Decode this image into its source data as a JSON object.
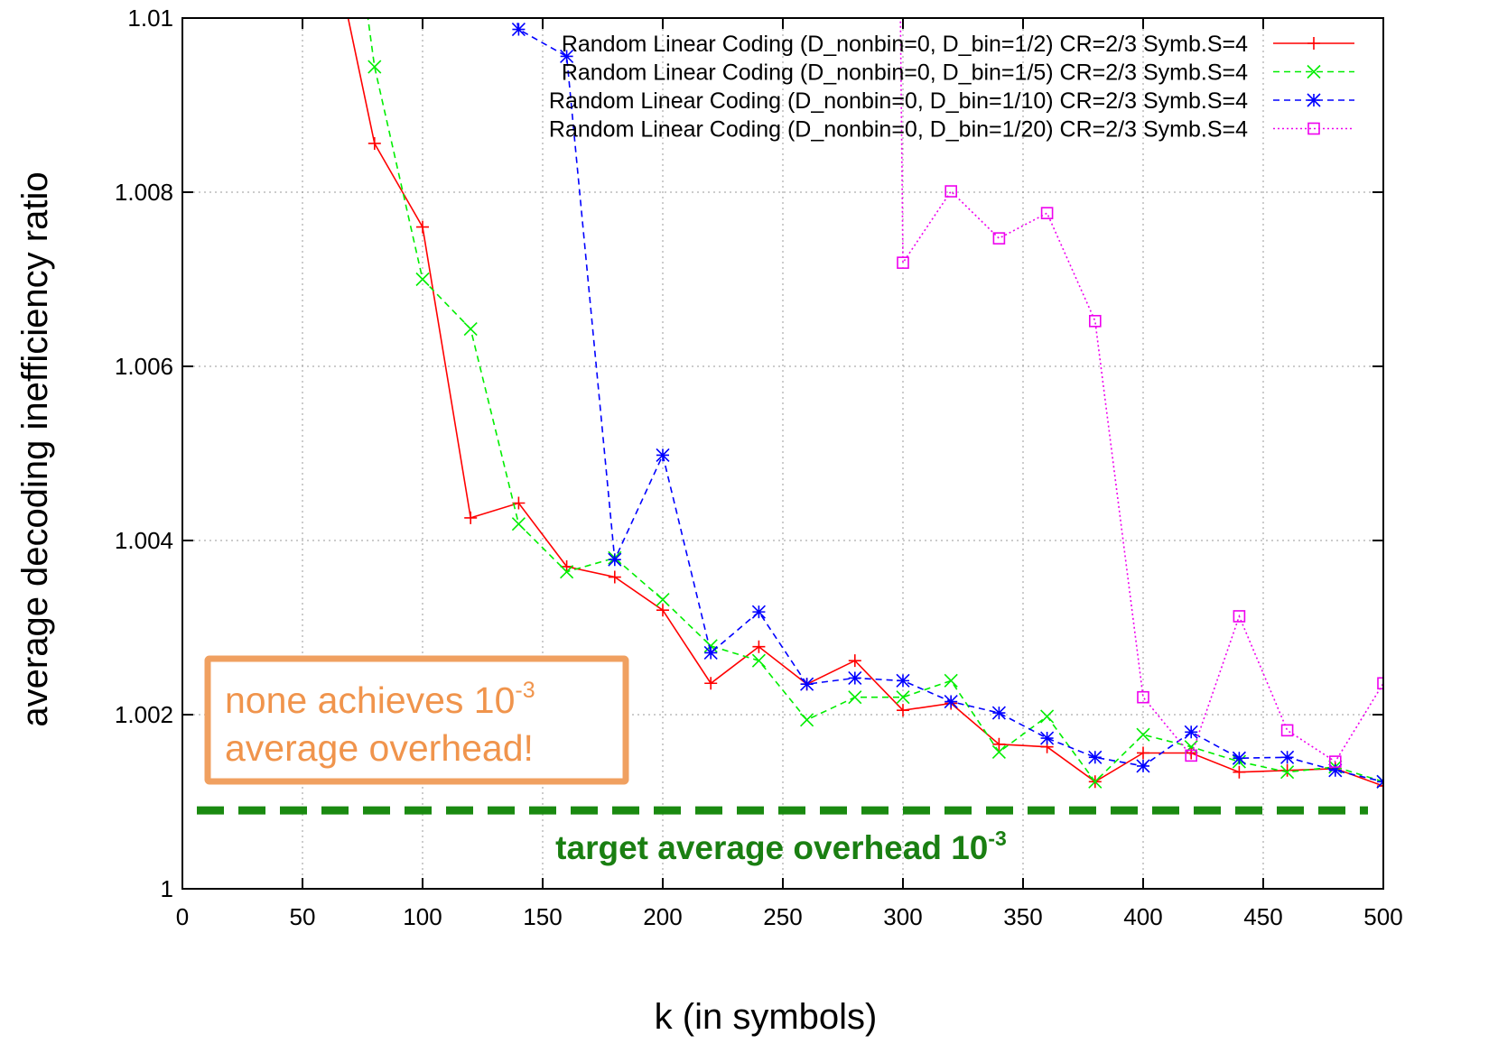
{
  "chart_data": {
    "type": "line",
    "title": "",
    "xlabel": "k (in symbols)",
    "ylabel": "average decoding inefficiency ratio",
    "xlim": [
      0,
      500
    ],
    "ylim": [
      1,
      1.01
    ],
    "xticks": [
      "0",
      "50",
      "100",
      "150",
      "200",
      "250",
      "300",
      "350",
      "400",
      "450",
      "500"
    ],
    "yticks": [
      "1",
      "1.002",
      "1.004",
      "1.006",
      "1.008",
      "1.01"
    ],
    "grid": true,
    "legend_position": "top-right",
    "series": [
      {
        "name": "Random Linear Coding (D_nonbin=0, D_bin=1/2) CR=2/3 Symb.S=4",
        "color": "#ff0000",
        "marker": "plus",
        "line_style": "solid",
        "x": [
          40,
          80,
          100,
          120,
          140,
          160,
          180,
          200,
          220,
          240,
          260,
          280,
          300,
          320,
          340,
          360,
          380,
          400,
          420,
          440,
          460,
          480,
          500
        ],
        "y": [
          1.0138,
          1.00856,
          1.0076,
          1.00426,
          1.00443,
          1.0037,
          1.00358,
          1.0032,
          1.00236,
          1.00278,
          1.00235,
          1.00262,
          1.00205,
          1.00213,
          1.00166,
          1.00163,
          1.00123,
          1.00156,
          1.00156,
          1.00134,
          1.00136,
          1.00138,
          1.00118
        ]
      },
      {
        "name": "Random Linear Coding (D_nonbin=0, D_bin=1/5) CR=2/3 Symb.S=4",
        "color": "#00ee00",
        "marker": "x",
        "line_style": "dashed",
        "x": [
          60,
          80,
          100,
          120,
          140,
          160,
          180,
          200,
          220,
          240,
          260,
          280,
          300,
          320,
          340,
          360,
          380,
          400,
          420,
          440,
          460,
          480,
          500
        ],
        "y": [
          1.0135,
          1.00944,
          1.007,
          1.00643,
          1.00419,
          1.00364,
          1.0038,
          1.00332,
          1.00279,
          1.00262,
          1.00194,
          1.0022,
          1.0022,
          1.00239,
          1.00157,
          1.00198,
          1.00123,
          1.00177,
          1.00163,
          1.00146,
          1.00134,
          1.0014,
          1.00123
        ]
      },
      {
        "name": "Random Linear Coding (D_nonbin=0, D_bin=1/10) CR=2/3 Symb.S=4",
        "color": "#0000ff",
        "marker": "star",
        "line_style": "dashed",
        "x": [
          120,
          140,
          160,
          180,
          200,
          220,
          240,
          260,
          280,
          300,
          320,
          340,
          360,
          380,
          400,
          420,
          440,
          460,
          480,
          500
        ],
        "y": [
          1.0125,
          1.00987,
          1.00956,
          1.00378,
          1.00498,
          1.00271,
          1.00318,
          1.00235,
          1.00242,
          1.00239,
          1.00215,
          1.00202,
          1.00173,
          1.00151,
          1.00141,
          1.0018,
          1.0015,
          1.00151,
          1.00136,
          1.00123
        ]
      },
      {
        "name": "Random Linear Coding (D_nonbin=0, D_bin=1/20) CR=2/3 Symb.S=4",
        "color": "#ee00ee",
        "marker": "square",
        "line_style": "dotted",
        "x": [
          298,
          300,
          320,
          340,
          360,
          380,
          400,
          420,
          440,
          460,
          480,
          500
        ],
        "y": [
          1.0125,
          1.00719,
          1.00801,
          1.00747,
          1.00776,
          1.00652,
          1.0022,
          1.00153,
          1.00313,
          1.00182,
          1.00146,
          1.00236
        ]
      }
    ],
    "annotations": {
      "target_level": 1.0009,
      "target_label": "target average overhead 10",
      "target_label_sup": "-3",
      "note_line1": "none achieves 10",
      "note_line1_sup": "-3",
      "note_line2": "average overhead!"
    }
  }
}
